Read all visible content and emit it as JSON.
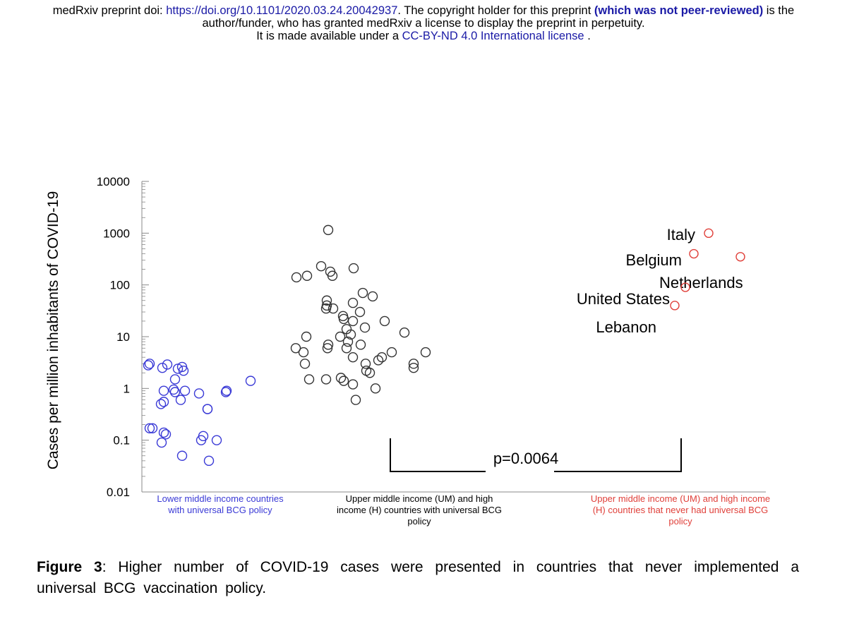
{
  "header": {
    "line1_prefix": "medRxiv preprint doi: ",
    "doi_link": "https://doi.org/10.1101/2020.03.24.20042937",
    "line1_mid": ". The copyright holder for this preprint ",
    "peer_review": "(which was not peer-reviewed)",
    "line1_suffix": " is the",
    "line2": "author/funder, who has granted medRxiv a license to display the preprint in perpetuity.",
    "line3_prefix": "It is made available under a ",
    "license_link": "CC-BY-ND 4.0 International license",
    "line3_suffix": " ."
  },
  "caption": {
    "label": "Figure 3",
    "text": ":   Higher number of COVID-19 cases were presented in countries that never implemented a universal BCG vaccination policy."
  },
  "chart_data": {
    "type": "scatter",
    "y_scale": "log",
    "ylim": [
      0.01,
      10000
    ],
    "ylabel": "Cases per million inhabitants of COVID-19",
    "y_ticks": [
      "10000",
      "1000",
      "100",
      "10",
      "1",
      "0.1",
      "0.01"
    ],
    "y_tick_values": [
      10000,
      1000,
      100,
      10,
      1,
      0.1,
      0.01
    ],
    "colors": {
      "lower": "#3a3ad6",
      "upper": "#333333",
      "never": "#e0403a",
      "axis": "#888888"
    },
    "groups": [
      {
        "label": "Lower middle income countries\nwith universal BCG policy",
        "color_key": "lower",
        "points": [
          2.8,
          3,
          2.5,
          2.9,
          2.2,
          2.4,
          2.6,
          1.5,
          0.9,
          0.85,
          0.9,
          0.8,
          0.95,
          0.55,
          0.5,
          0.4,
          0.6,
          0.9,
          0.85,
          1.4,
          0.4,
          0.17,
          0.17,
          0.13,
          0.14,
          0.1,
          0.12,
          0.1,
          0.09,
          0.05,
          0.04
        ]
      },
      {
        "label": "Upper middle income (UM)  and high\nincome (H) countries with universal BCG\npolicy",
        "color_key": "upper",
        "points": [
          1150,
          140,
          150,
          230,
          180,
          150,
          210,
          50,
          35,
          60,
          70,
          40,
          45,
          35,
          30,
          25,
          20,
          22,
          15,
          12,
          10,
          11,
          14,
          20,
          10,
          7,
          6,
          8,
          6,
          5,
          7,
          5,
          4,
          3.5,
          3,
          2.5,
          2.2,
          3,
          2,
          1.5,
          1.5,
          1.6,
          1.4,
          1.2,
          1,
          0.6,
          5,
          3,
          6,
          4
        ]
      },
      {
        "label": "Upper middle income (UM)  and high income\n(H) countries that never had universal BCG\npolicy",
        "color_key": "never",
        "points": [
          {
            "name": "Italy",
            "value": 1000
          },
          {
            "name": "Belgium",
            "value": 400
          },
          {
            "name": "Netherlands",
            "value": 350
          },
          {
            "name": "United States",
            "value": 90
          },
          {
            "name": "Lebanon",
            "value": 40
          }
        ]
      }
    ],
    "annotation": "p=0.0064"
  }
}
